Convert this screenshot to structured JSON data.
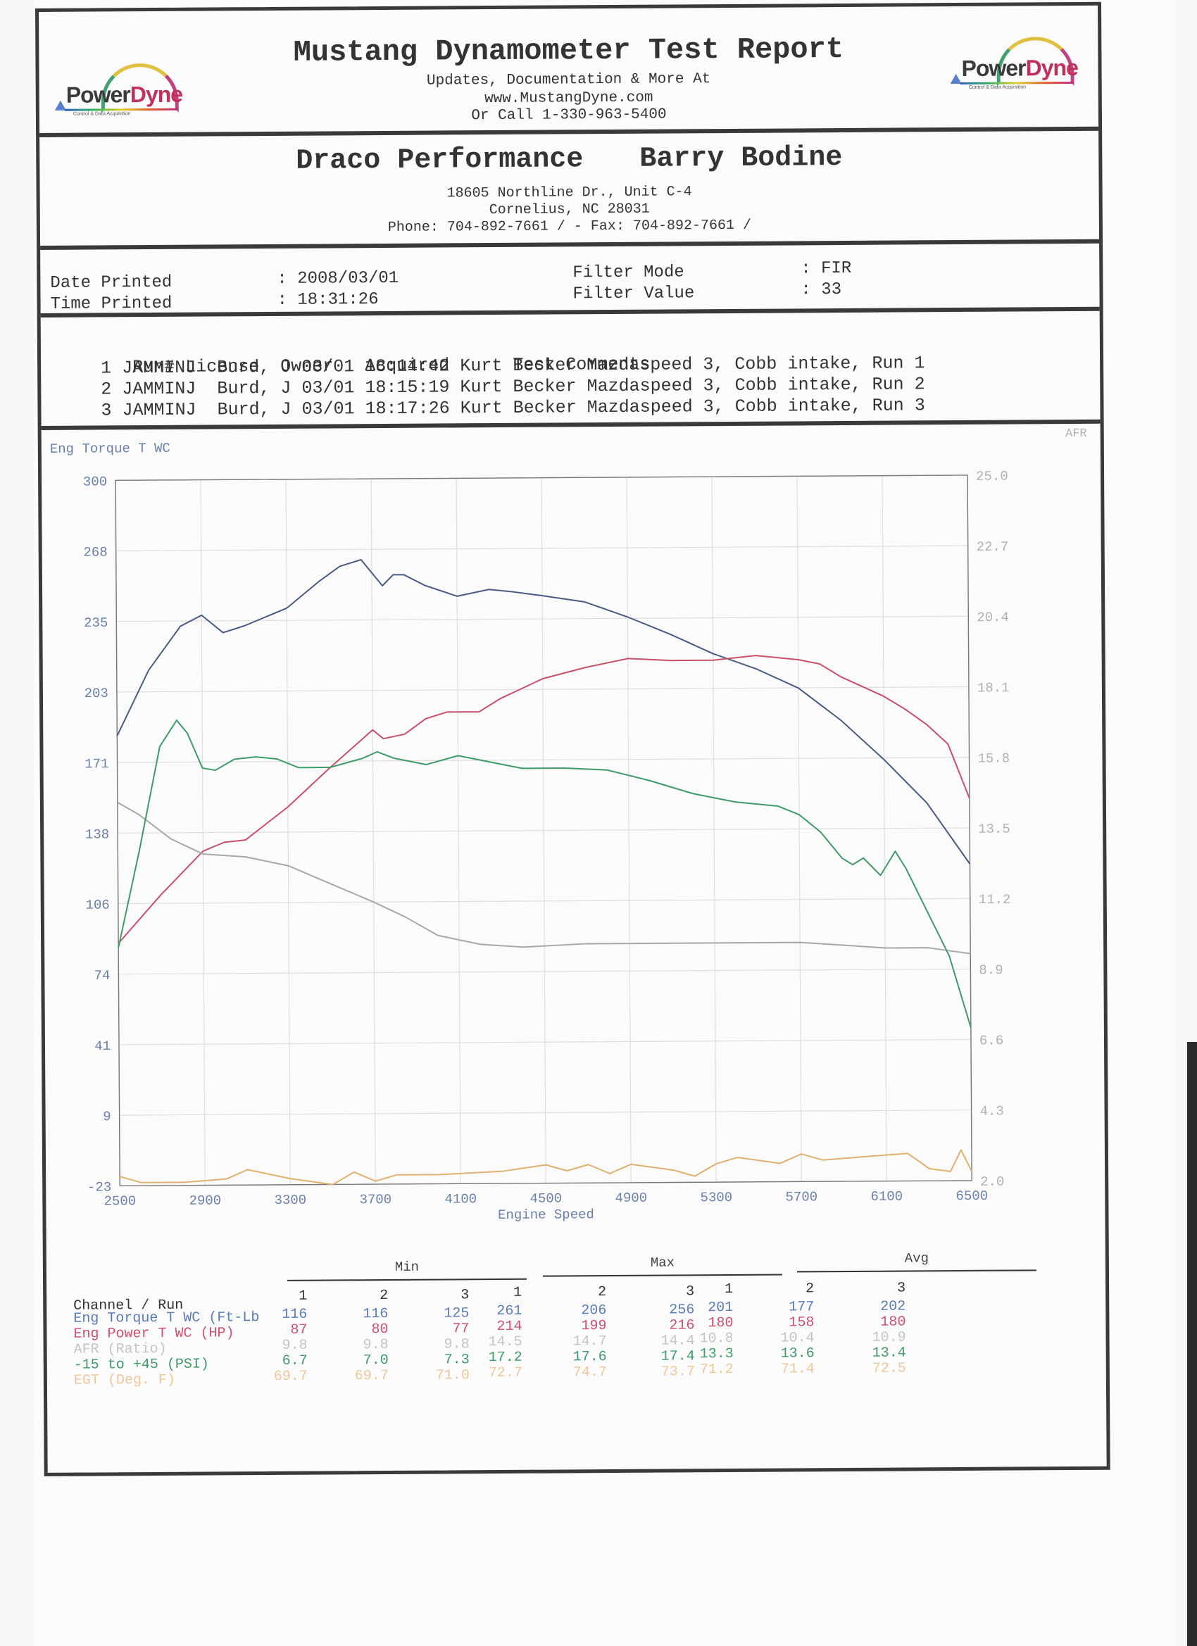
{
  "header": {
    "title": "Mustang Dynamometer Test Report",
    "line1": "Updates, Documentation & More At",
    "line2": "www.MustangDyne.com",
    "line3": "Or Call 1-330-963-5400",
    "logo_left": {
      "word1": "Power",
      "word2": "Dyne",
      "tagline": "Control & Data Acquisition"
    },
    "logo_right": {
      "word1": "Power",
      "word2": "Dyne",
      "tagline": "Control & Data Acquisition"
    }
  },
  "shop": {
    "name": "Draco Performance",
    "contact": "Barry Bodine",
    "address1": "18605 Northline Dr., Unit C-4",
    "address2": "Cornelius, NC  28031",
    "phone_line": "Phone: 704-892-7661 /  - Fax: 704-892-7661 /"
  },
  "print_info": {
    "date_label": "Date Printed",
    "date_value": ": 2008/03/01",
    "time_label": "Time Printed",
    "time_value": ": 18:31:26",
    "filter_mode_label": "Filter Mode",
    "filter_mode_value": ": FIR",
    "filter_value_label": "Filter Value",
    "filter_value_value": ": 33"
  },
  "runs": {
    "headers": [
      "Run#",
      "License",
      "Owner",
      "Acquired",
      "Test Comments"
    ],
    "rows": [
      {
        "run": "1",
        "license": "JAMMINJ",
        "owner": "Burd, J",
        "acquired": "03/01 18:14:42",
        "comment": "Kurt Becker Mazdaspeed 3, Cobb intake, Run 1"
      },
      {
        "run": "2",
        "license": "JAMMINJ",
        "owner": "Burd, J",
        "acquired": "03/01 18:15:19",
        "comment": "Kurt Becker Mazdaspeed 3, Cobb intake, Run 2"
      },
      {
        "run": "3",
        "license": "JAMMINJ",
        "owner": "Burd, J",
        "acquired": "03/01 18:17:26",
        "comment": "Kurt Becker Mazdaspeed 3, Cobb intake, Run 3"
      }
    ]
  },
  "colors": {
    "torque": "#4a5a85",
    "power": "#c8506a",
    "afr": "#a8a8a8",
    "boost": "#3f9a6a",
    "egt": "#e0b070",
    "axis_left": "#6a7fa8",
    "axis_right": "#b0b0b0",
    "grid": "#dedede"
  },
  "chart_data": {
    "type": "line",
    "title": "",
    "xlabel": "Engine Speed",
    "ylabel": "Eng Torque T WC",
    "y2label": "AFR",
    "xlim": [
      2500,
      6500
    ],
    "ylim": [
      -23,
      300
    ],
    "y2lim": [
      2.0,
      25.0
    ],
    "x_ticks": [
      "2500",
      "2900",
      "3300",
      "3700",
      "4100",
      "4500",
      "4900",
      "5300",
      "5700",
      "6100",
      "6500"
    ],
    "y_ticks": [
      "300",
      "268",
      "235",
      "203",
      "171",
      "138",
      "106",
      "74",
      "41",
      "9",
      "-23"
    ],
    "y2_ticks": [
      "25.0",
      "22.7",
      "20.4",
      "18.1",
      "15.8",
      "13.5",
      "11.2",
      "8.9",
      "6.6",
      "4.3",
      "2.0"
    ],
    "grid": true,
    "series": [
      {
        "name": "Eng Torque T WC (Ft-Lb)",
        "axis": "left",
        "color": "#4a5a85",
        "x": [
          2500,
          2650,
          2800,
          2900,
          3000,
          3100,
          3300,
          3450,
          3550,
          3650,
          3700,
          3750,
          3800,
          3850,
          3950,
          4100,
          4250,
          4350,
          4500,
          4700,
          4900,
          5100,
          5300,
          5500,
          5700,
          5900,
          6100,
          6300,
          6500
        ],
        "y": [
          183,
          213,
          233,
          238,
          230,
          233,
          241,
          253,
          260,
          263,
          257,
          251,
          256,
          256,
          251,
          246,
          249,
          248,
          246,
          243,
          236,
          228,
          219,
          212,
          203,
          188,
          170,
          150,
          122
        ]
      },
      {
        "name": "Eng Power T WC (HP)",
        "axis": "left",
        "color": "#c8506a",
        "x": [
          2500,
          2700,
          2900,
          3000,
          3100,
          3300,
          3500,
          3700,
          3750,
          3850,
          3950,
          4050,
          4200,
          4300,
          4500,
          4700,
          4900,
          5100,
          5300,
          5500,
          5700,
          5800,
          5900,
          6100,
          6200,
          6300,
          6400,
          6500
        ],
        "y": [
          88,
          110,
          130,
          134,
          135,
          150,
          168,
          185,
          181,
          183,
          190,
          193,
          193,
          199,
          208,
          213,
          217,
          216,
          216,
          218,
          216,
          214,
          208,
          199,
          193,
          186,
          177,
          152
        ]
      },
      {
        "name": "AFR (Ratio)",
        "axis": "right",
        "color": "#a8a8a8",
        "x": [
          2500,
          2600,
          2750,
          2900,
          3100,
          3300,
          3500,
          3700,
          3850,
          4000,
          4200,
          4400,
          4700,
          4900,
          5100,
          5300,
          5500,
          5700,
          5900,
          6100,
          6300,
          6500
        ],
        "y": [
          14.5,
          14.1,
          13.3,
          12.8,
          12.7,
          12.4,
          11.8,
          11.2,
          10.7,
          10.1,
          9.8,
          9.7,
          9.8,
          9.8,
          9.8,
          9.8,
          9.8,
          9.8,
          9.7,
          9.6,
          9.6,
          9.4
        ]
      },
      {
        "name": "-15 to +45 (PSI)",
        "axis": "left",
        "color": "#3f9a6a",
        "x": [
          2500,
          2600,
          2700,
          2780,
          2830,
          2900,
          2960,
          3050,
          3150,
          3250,
          3350,
          3500,
          3650,
          3720,
          3800,
          3950,
          4100,
          4250,
          4400,
          4600,
          4800,
          5000,
          5200,
          5400,
          5600,
          5700,
          5800,
          5900,
          5950,
          6000,
          6080,
          6150,
          6200,
          6300,
          6400,
          6500
        ],
        "y": [
          86,
          130,
          178,
          190,
          184,
          168,
          167,
          172,
          173,
          172,
          168,
          168,
          172,
          175,
          172,
          169,
          173,
          170,
          167,
          167,
          166,
          161,
          155,
          151,
          149,
          145,
          137,
          125,
          122,
          125,
          117,
          128,
          120,
          100,
          80,
          47
        ]
      },
      {
        "name": "EGT (Deg. F)",
        "axis": "right",
        "color": "#e0b070",
        "x": [
          2500,
          2600,
          2800,
          3000,
          3100,
          3300,
          3500,
          3600,
          3700,
          3800,
          4000,
          4300,
          4500,
          4600,
          4700,
          4800,
          4900,
          5100,
          5200,
          5300,
          5400,
          5600,
          5700,
          5800,
          6000,
          6200,
          6300,
          6400,
          6450,
          6500
        ],
        "y": [
          2.3,
          2.1,
          2.1,
          2.2,
          2.5,
          2.2,
          2.0,
          2.4,
          2.1,
          2.3,
          2.3,
          2.4,
          2.6,
          2.4,
          2.6,
          2.3,
          2.6,
          2.4,
          2.2,
          2.6,
          2.8,
          2.6,
          2.9,
          2.7,
          2.8,
          2.9,
          2.4,
          2.3,
          3.0,
          2.3
        ]
      }
    ]
  },
  "axes": {
    "left_title": "Eng Torque T WC",
    "right_title": "AFR",
    "x_title": "Engine Speed"
  },
  "stats": {
    "channel_header": "Channel / Run",
    "groups": [
      "Min",
      "Max",
      "Avg"
    ],
    "run_numbers": [
      "1",
      "2",
      "3",
      "1",
      "2",
      "3",
      "1",
      "2",
      "3"
    ],
    "rows": [
      {
        "label": "Eng Torque T WC (Ft-Lb",
        "color": "#5a7bb5",
        "values": [
          "116",
          "116",
          "125",
          "261",
          "206",
          "256",
          "201",
          "177",
          "202"
        ]
      },
      {
        "label": "Eng Power T WC (HP)",
        "color": "#d0506e",
        "values": [
          "87",
          "80",
          "77",
          "214",
          "199",
          "216",
          "180",
          "158",
          "180"
        ]
      },
      {
        "label": "AFR (Ratio)",
        "color": "#c4c4c4",
        "values": [
          "9.8",
          "9.8",
          "9.8",
          "14.5",
          "14.7",
          "14.4",
          "10.8",
          "10.4",
          "10.9"
        ]
      },
      {
        "label": "-15 to +45 (PSI)",
        "color": "#3f9a6a",
        "values": [
          "6.7",
          "7.0",
          "7.3",
          "17.2",
          "17.6",
          "17.4",
          "13.3",
          "13.6",
          "13.4"
        ]
      },
      {
        "label": "EGT (Deg. F)",
        "color": "#efc79a",
        "values": [
          "69.7",
          "69.7",
          "71.0",
          "72.7",
          "74.7",
          "73.7",
          "71.2",
          "71.4",
          "72.5"
        ]
      }
    ]
  }
}
